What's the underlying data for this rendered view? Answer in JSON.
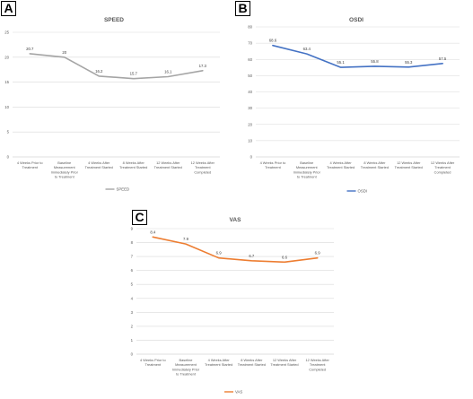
{
  "chart_data": [
    {
      "panel": "A",
      "type": "line",
      "title": "SPEED",
      "categories": [
        [
          "4 Weeks Prior to",
          "Treatment"
        ],
        [
          "Baseline",
          "Measurement",
          "Immediately Prior",
          "to Treatment"
        ],
        [
          "4 Weeks After",
          "Treatment Started"
        ],
        [
          "8 Weeks After",
          "Treatment Started"
        ],
        [
          "12 Weeks After",
          "Treatment Started"
        ],
        [
          "12 Weeks After",
          "Treatment",
          "Completed"
        ]
      ],
      "series": [
        {
          "name": "SPEED",
          "values": [
            20.7,
            20,
            16.2,
            15.7,
            16.1,
            17.3
          ],
          "data_labels": [
            "20.7",
            "20",
            "16.2",
            "15.7",
            "16.1",
            "17.3"
          ],
          "color": "#a5a5a5"
        }
      ],
      "yticks": [
        "0",
        "5",
        "10",
        "15",
        "20",
        "25"
      ],
      "ylim": [
        0,
        25
      ],
      "grid": true,
      "legend_position": "bottom"
    },
    {
      "panel": "B",
      "type": "line",
      "title": "OSDI",
      "categories": [
        [
          "4 Weeks Prior to",
          "Treatment"
        ],
        [
          "Baseline",
          "Measurement",
          "Immediately Prior",
          "to Treatment"
        ],
        [
          "4 Weeks After",
          "Treatment Started"
        ],
        [
          "8 Weeks After",
          "Treatment Started"
        ],
        [
          "12 Weeks After",
          "Treatment Started"
        ],
        [
          "12 Weeks After",
          "Treatment",
          "Completed"
        ]
      ],
      "series": [
        {
          "name": "OSDI",
          "values": [
            68.6,
            63.4,
            55.1,
            55.8,
            55.3,
            57.5
          ],
          "data_labels": [
            "68.6",
            "63.4",
            "55.1",
            "55.8",
            "55.3",
            "57.5"
          ],
          "color": "#4472c4"
        }
      ],
      "yticks": [
        "0",
        "10",
        "20",
        "30",
        "40",
        "50",
        "60",
        "70",
        "80"
      ],
      "ylim": [
        0,
        80
      ],
      "grid": true,
      "legend_position": "bottom"
    },
    {
      "panel": "C",
      "type": "line",
      "title": "VAS",
      "categories": [
        [
          "4 Weeks Prior to",
          "Treatment"
        ],
        [
          "Baseline",
          "Measurement",
          "Immediately Prior",
          "to Treatment"
        ],
        [
          "4 Weeks After",
          "Treatment Started"
        ],
        [
          "8 Weeks After",
          "Treatment Started"
        ],
        [
          "12 Weeks After",
          "Treatment Started"
        ],
        [
          "12 Weeks After",
          "Treatment",
          "Completed"
        ]
      ],
      "series": [
        {
          "name": "VAS",
          "values": [
            8.4,
            7.9,
            6.9,
            6.7,
            6.6,
            6.9
          ],
          "data_labels": [
            "8.4",
            "7.9",
            "6.9",
            "6.7",
            "6.6",
            "6.9"
          ],
          "color": "#ed7d31"
        }
      ],
      "yticks": [
        "0",
        "1",
        "2",
        "3",
        "4",
        "5",
        "6",
        "7",
        "8",
        "9"
      ],
      "ylim": [
        0,
        9
      ],
      "grid": true,
      "legend_position": "bottom"
    }
  ]
}
